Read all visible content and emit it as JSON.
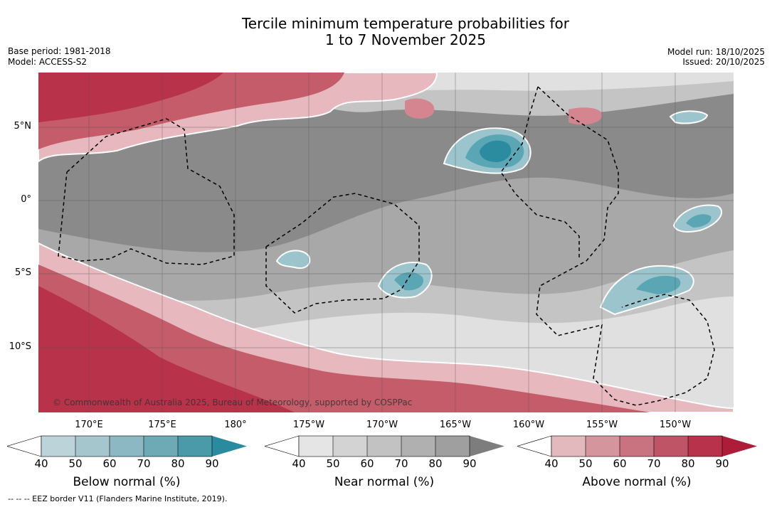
{
  "title": {
    "line1": "Tercile minimum temperature probabilities for",
    "line2": "1 to 7 November 2025"
  },
  "meta": {
    "base_period": "Base period: 1981-2018",
    "model": "Model: ACCESS-S2",
    "model_run": "Model run: 18/10/2025",
    "issued": "Issued: 20/10/2025"
  },
  "map": {
    "lat_labels": [
      "5°N",
      "0°",
      "5°S",
      "10°S"
    ],
    "lon_labels": [
      "170°E",
      "175°E",
      "180°",
      "175°W",
      "170°W",
      "165°W",
      "160°W",
      "155°W",
      "150°W"
    ],
    "copyright": "© Commonwealth of Australia 2025, Bureau of Meteorology, supported by COSPPac",
    "colors": {
      "background": "#8a8a8a",
      "near_50": "#a8a8a8",
      "near_60": "#c4c4c4",
      "near_40": "#e0e0e0",
      "above_40": "#e8b8bf",
      "above_50": "#d4858f",
      "above_60": "#c55c69",
      "above_80": "#b8324a",
      "below_50": "#9cc4cc",
      "below_70": "#5aa6b4",
      "below_90": "#2a8c9e"
    }
  },
  "colorbars": [
    {
      "title": "Below normal (%)",
      "ticks": [
        "40",
        "50",
        "60",
        "70",
        "80",
        "90"
      ],
      "colors": [
        "#ffffff",
        "#bcd3d9",
        "#a5c6cd",
        "#8bb8c2",
        "#6eaab6",
        "#4a9aa9",
        "#2b8b9e"
      ]
    },
    {
      "title": "Near normal (%)",
      "ticks": [
        "40",
        "50",
        "60",
        "70",
        "80",
        "90"
      ],
      "colors": [
        "#ffffff",
        "#e5e5e5",
        "#d3d3d3",
        "#c2c2c2",
        "#b0b0b0",
        "#9f9f9f",
        "#7d7d7d"
      ]
    },
    {
      "title": "Above normal (%)",
      "ticks": [
        "40",
        "50",
        "60",
        "70",
        "80",
        "90"
      ],
      "colors": [
        "#ffffff",
        "#e3b9be",
        "#d4959d",
        "#c8737f",
        "#bf5466",
        "#b8324c",
        "#ad1d3a"
      ]
    }
  ],
  "footer": "--  --  -- EEZ border V11 (Flanders Marine Institute, 2019)."
}
